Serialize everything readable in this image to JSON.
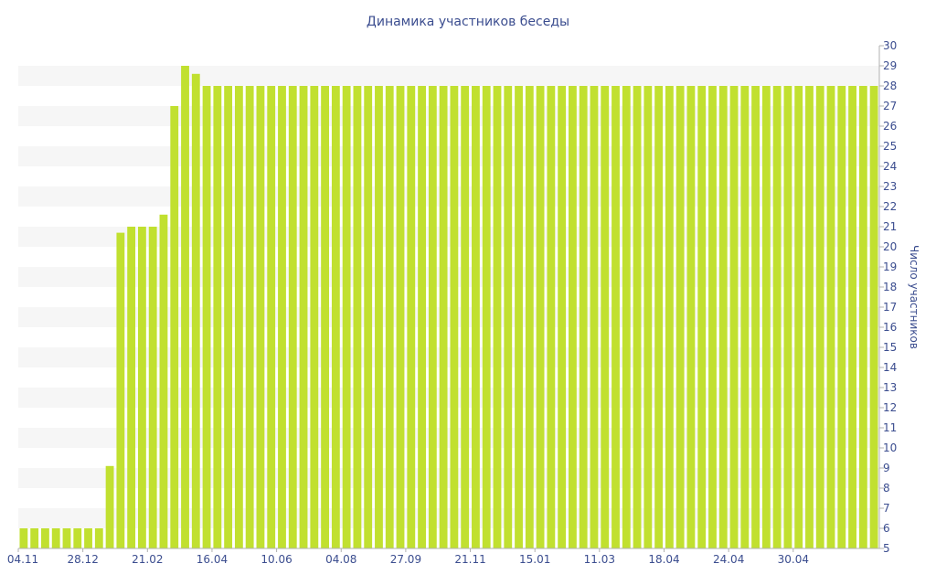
{
  "chart_data": {
    "type": "bar",
    "title": "Динамика участников беседы",
    "xlabel": "",
    "ylabel": "Число участников",
    "ylim": [
      5,
      30
    ],
    "yticks": [
      5,
      6,
      7,
      8,
      9,
      10,
      11,
      12,
      13,
      14,
      15,
      16,
      17,
      18,
      19,
      20,
      21,
      22,
      23,
      24,
      25,
      26,
      27,
      28,
      29,
      30
    ],
    "grid": "horizontal alternating bands",
    "x_tick_labels": [
      "04.11",
      "28.12",
      "21.02",
      "16.04",
      "10.06",
      "04.08",
      "27.09",
      "21.11",
      "15.01",
      "11.03",
      "18.04",
      "24.04",
      "30.04"
    ],
    "x_tick_label_every": 6,
    "values": [
      6,
      6,
      6,
      6,
      6,
      6,
      6,
      6,
      9.1,
      20.7,
      21,
      21,
      21,
      21.6,
      27,
      29,
      28.6,
      28,
      28,
      28,
      28,
      28,
      28,
      28,
      28,
      28,
      28,
      28,
      28,
      28,
      28,
      28,
      28,
      28,
      28,
      28,
      28,
      28,
      28,
      28,
      28,
      28,
      28,
      28,
      28,
      28,
      28,
      28,
      28,
      28,
      28,
      28,
      28,
      28,
      28,
      28,
      28,
      28,
      28,
      28,
      28,
      28,
      28,
      28,
      28,
      28,
      28,
      28,
      28,
      28,
      28,
      28,
      28,
      28,
      28,
      28,
      28,
      28,
      28,
      28
    ],
    "colors": {
      "bar": "#c1e030",
      "band": "#f6f6f6",
      "text": "#3b4d8f",
      "axis": "#b0b0b0"
    }
  }
}
